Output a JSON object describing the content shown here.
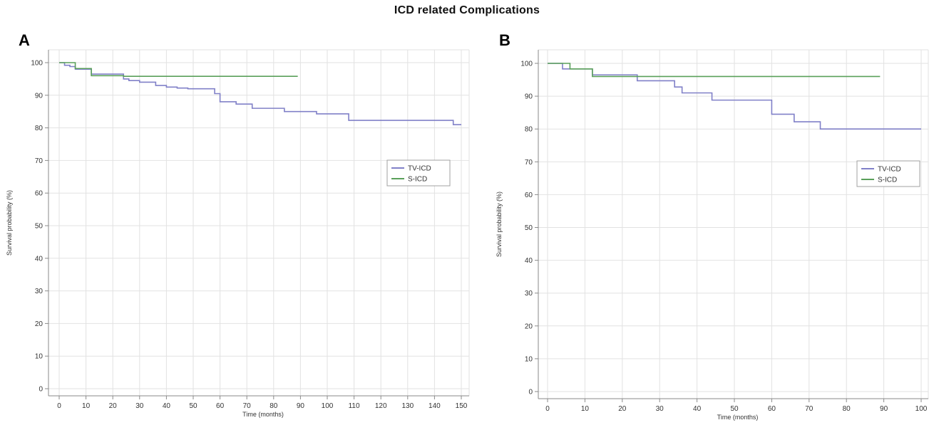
{
  "title": "ICD related Complications",
  "colors": {
    "tv_icd": "#8080c8",
    "s_icd": "#5aa05a"
  },
  "chart_data": [
    {
      "panel": "A",
      "type": "line",
      "step": true,
      "xlabel": "Time (months)",
      "ylabel": "Survival probability (%)",
      "xlim": [
        0,
        150
      ],
      "ylim": [
        0,
        100
      ],
      "xticks": [
        0,
        10,
        20,
        30,
        40,
        50,
        60,
        70,
        80,
        90,
        100,
        110,
        120,
        130,
        140,
        150
      ],
      "yticks": [
        0,
        10,
        20,
        30,
        40,
        50,
        60,
        70,
        80,
        90,
        100
      ],
      "legend": {
        "position": "right",
        "entries": [
          "TV-ICD",
          "S-ICD"
        ]
      },
      "series": [
        {
          "name": "TV-ICD",
          "x": [
            0,
            2,
            4,
            6,
            12,
            24,
            26,
            30,
            36,
            40,
            44,
            48,
            58,
            60,
            66,
            72,
            84,
            96,
            108,
            147,
            150
          ],
          "y": [
            100,
            99.2,
            98.8,
            98.0,
            96.5,
            95.0,
            94.5,
            94.0,
            93.0,
            92.5,
            92.2,
            92.0,
            90.5,
            88.0,
            87.3,
            86.0,
            85.0,
            84.3,
            82.3,
            81.0,
            81.0
          ]
        },
        {
          "name": "S-ICD",
          "x": [
            0,
            6,
            12,
            24,
            89
          ],
          "y": [
            100,
            98.2,
            96.0,
            95.8,
            95.8
          ]
        }
      ]
    },
    {
      "panel": "B",
      "type": "line",
      "step": true,
      "xlabel": "Time (months)",
      "ylabel": "Survival probability (%)",
      "xlim": [
        0,
        100
      ],
      "ylim": [
        0,
        100
      ],
      "xticks": [
        0,
        10,
        20,
        30,
        40,
        50,
        60,
        70,
        80,
        90,
        100
      ],
      "yticks": [
        0,
        10,
        20,
        30,
        40,
        50,
        60,
        70,
        80,
        90,
        100
      ],
      "legend": {
        "position": "right",
        "entries": [
          "TV-ICD",
          "S-ICD"
        ]
      },
      "series": [
        {
          "name": "TV-ICD",
          "x": [
            0,
            4,
            12,
            24,
            34,
            36,
            44,
            60,
            66,
            73,
            100
          ],
          "y": [
            100,
            98.3,
            96.5,
            94.7,
            92.8,
            91.0,
            88.8,
            84.5,
            82.2,
            80.0,
            80.0
          ]
        },
        {
          "name": "S-ICD",
          "x": [
            0,
            6,
            12,
            24,
            89
          ],
          "y": [
            100,
            98.3,
            96.0,
            96.0,
            96.0
          ]
        }
      ]
    }
  ]
}
